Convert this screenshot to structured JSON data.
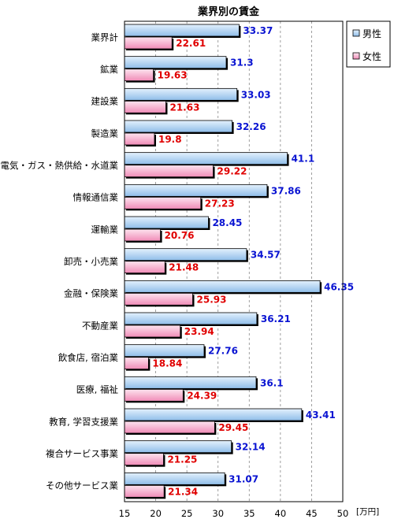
{
  "chart_data": {
    "type": "bar",
    "orientation": "horizontal",
    "title": "業界別の賃金",
    "unit": "[万円]",
    "categories": [
      "業界計",
      "鉱業",
      "建設業",
      "製造業",
      "電気・ガス・熱供給・水道業",
      "情報通信業",
      "運輸業",
      "卸売・小売業",
      "金融・保険業",
      "不動産業",
      "飲食店, 宿泊業",
      "医療, 福祉",
      "教育, 学習支援業",
      "複合サービス事業",
      "その他サービス業"
    ],
    "series": [
      {
        "name": "男性",
        "color": "#9ec8f0",
        "values": [
          33.37,
          31.3,
          33.03,
          32.26,
          41.1,
          37.86,
          28.45,
          34.57,
          46.35,
          36.21,
          27.76,
          36.1,
          43.41,
          32.14,
          31.07
        ]
      },
      {
        "name": "女性",
        "color": "#f4a6c8",
        "values": [
          22.61,
          19.63,
          21.63,
          19.8,
          29.22,
          27.23,
          20.76,
          21.48,
          25.93,
          23.94,
          18.84,
          24.39,
          29.45,
          21.25,
          21.34
        ]
      }
    ],
    "xlim": [
      15,
      50
    ],
    "xticks": [
      15,
      20,
      25,
      30,
      35,
      40,
      45,
      50
    ],
    "grid": "vertical dashed",
    "legend_position": "top-right",
    "data_labels": true
  }
}
